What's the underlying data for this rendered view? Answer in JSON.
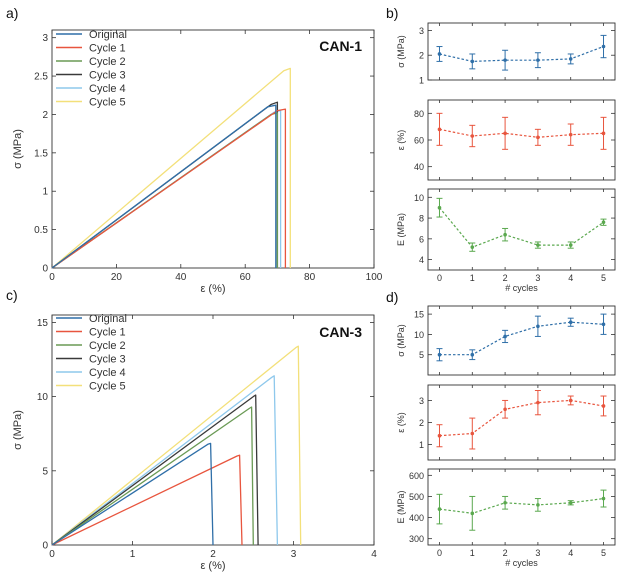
{
  "colors": {
    "Original": "#2f6fa8",
    "Cycle 1": "#e8553e",
    "Cycle 2": "#6a9a55",
    "Cycle 3": "#3a3a3a",
    "Cycle 4": "#8ec8ec",
    "Cycle 5": "#f3e07a",
    "sigma": "#2f6fa8",
    "eps": "#e8553e",
    "E": "#5aa84e"
  },
  "chart_data": [
    {
      "id": "a",
      "type": "line",
      "panel_label": "a)",
      "inset_label": "CAN-1",
      "xlabel": "ε (%)",
      "ylabel": "σ (MPa)",
      "xlim": [
        0,
        100
      ],
      "ylim": [
        0,
        3.1
      ],
      "xticks": [
        0,
        20,
        40,
        60,
        80,
        100
      ],
      "yticks": [
        0,
        0.5,
        1,
        1.5,
        2,
        2.5,
        3
      ],
      "ytick_labels": [
        "0",
        "0.5",
        "1",
        "1.5",
        "2",
        "2.5",
        "3"
      ],
      "legend": "top-left",
      "series": [
        {
          "name": "Original",
          "x": [
            0,
            67,
            69.5,
            69.5
          ],
          "y": [
            0,
            2.1,
            2.12,
            0
          ]
        },
        {
          "name": "Cycle 1",
          "x": [
            0,
            70,
            72.5,
            72.5
          ],
          "y": [
            0,
            2.05,
            2.07,
            0
          ]
        },
        {
          "name": "Cycle 2",
          "x": [
            0,
            68,
            70,
            70
          ],
          "y": [
            0,
            2.0,
            2.02,
            0
          ]
        },
        {
          "name": "Cycle 3",
          "x": [
            0,
            68,
            70,
            70
          ],
          "y": [
            0,
            2.13,
            2.16,
            0
          ]
        },
        {
          "name": "Cycle 4",
          "x": [
            0,
            69,
            71,
            71
          ],
          "y": [
            0,
            2.03,
            2.05,
            0
          ]
        },
        {
          "name": "Cycle 5",
          "x": [
            0,
            72,
            74,
            74
          ],
          "y": [
            0,
            2.57,
            2.6,
            0
          ]
        }
      ]
    },
    {
      "id": "b1",
      "type": "line",
      "panel_label": "b)",
      "ylabel": "σ (MPa)",
      "color_key": "sigma",
      "xlim": [
        -0.35,
        5.35
      ],
      "ylim": [
        1,
        3.3
      ],
      "yticks": [
        1,
        2,
        3
      ],
      "ytick_labels": [
        "1",
        "2",
        "3"
      ],
      "x": [
        0,
        1,
        2,
        3,
        4,
        5
      ],
      "values": [
        2.05,
        1.75,
        1.8,
        1.8,
        1.85,
        2.35
      ],
      "errors": [
        0.3,
        0.3,
        0.4,
        0.3,
        0.2,
        0.45
      ]
    },
    {
      "id": "b2",
      "type": "line",
      "ylabel": "ε (%)",
      "color_key": "eps",
      "xlim": [
        -0.35,
        5.35
      ],
      "ylim": [
        30,
        90
      ],
      "yticks": [
        40,
        60,
        80
      ],
      "ytick_labels": [
        "40",
        "60",
        "80"
      ],
      "x": [
        0,
        1,
        2,
        3,
        4,
        5
      ],
      "values": [
        68,
        63,
        65,
        62,
        64,
        65
      ],
      "errors": [
        12,
        8,
        12,
        6,
        8,
        12
      ]
    },
    {
      "id": "b3",
      "type": "line",
      "ylabel": "E (MPa)",
      "xlabel": "# cycles",
      "color_key": "E",
      "xlim": [
        -0.35,
        5.35
      ],
      "ylim": [
        3,
        10.8
      ],
      "xticks": [
        0,
        1,
        2,
        3,
        4,
        5
      ],
      "yticks": [
        4,
        6,
        8,
        10
      ],
      "ytick_labels": [
        "4",
        "6",
        "8",
        "10"
      ],
      "x": [
        0,
        1,
        2,
        3,
        4,
        5
      ],
      "values": [
        9.0,
        5.2,
        6.4,
        5.4,
        5.4,
        7.6
      ],
      "errors": [
        0.9,
        0.4,
        0.6,
        0.3,
        0.3,
        0.3
      ]
    },
    {
      "id": "c",
      "type": "line",
      "panel_label": "c)",
      "inset_label": "CAN-3",
      "xlabel": "ε (%)",
      "ylabel": "σ (MPa)",
      "xlim": [
        0,
        4
      ],
      "ylim": [
        0,
        15.5
      ],
      "xticks": [
        0,
        1,
        2,
        3,
        4
      ],
      "yticks": [
        0,
        5,
        10,
        15
      ],
      "ytick_labels": [
        "0",
        "5",
        "10",
        "15"
      ],
      "legend": "top-left",
      "series": [
        {
          "name": "Original",
          "x": [
            0,
            1.94,
            1.97,
            2.0
          ],
          "y": [
            0,
            6.8,
            6.85,
            0
          ]
        },
        {
          "name": "Cycle 1",
          "x": [
            0,
            2.3,
            2.33,
            2.36
          ],
          "y": [
            0,
            6.0,
            6.05,
            0
          ]
        },
        {
          "name": "Cycle 2",
          "x": [
            0,
            2.45,
            2.48,
            2.5
          ],
          "y": [
            0,
            9.2,
            9.3,
            0
          ]
        },
        {
          "name": "Cycle 3",
          "x": [
            0,
            2.5,
            2.53,
            2.56
          ],
          "y": [
            0,
            10.0,
            10.1,
            0
          ]
        },
        {
          "name": "Cycle 4",
          "x": [
            0,
            2.73,
            2.76,
            2.8
          ],
          "y": [
            0,
            11.3,
            11.4,
            0
          ]
        },
        {
          "name": "Cycle 5",
          "x": [
            0,
            3.03,
            3.06,
            3.09
          ],
          "y": [
            0,
            13.3,
            13.4,
            0
          ]
        }
      ]
    },
    {
      "id": "d1",
      "type": "line",
      "panel_label": "d)",
      "ylabel": "σ (MPa)",
      "color_key": "sigma",
      "xlim": [
        -0.35,
        5.35
      ],
      "ylim": [
        0,
        17
      ],
      "yticks": [
        5,
        10,
        15
      ],
      "ytick_labels": [
        "5",
        "10",
        "15"
      ],
      "x": [
        0,
        1,
        2,
        3,
        4,
        5
      ],
      "values": [
        5,
        5,
        9.5,
        12,
        13,
        12.5
      ],
      "errors": [
        1.5,
        1.2,
        1.5,
        2.5,
        1.0,
        2.5
      ]
    },
    {
      "id": "d2",
      "type": "line",
      "ylabel": "ε (%)",
      "color_key": "eps",
      "xlim": [
        -0.35,
        5.35
      ],
      "ylim": [
        0.3,
        3.7
      ],
      "yticks": [
        1,
        2,
        3
      ],
      "ytick_labels": [
        "1",
        "2",
        "3"
      ],
      "x": [
        0,
        1,
        2,
        3,
        4,
        5
      ],
      "values": [
        1.4,
        1.5,
        2.6,
        2.9,
        3.0,
        2.75
      ],
      "errors": [
        0.5,
        0.7,
        0.4,
        0.55,
        0.2,
        0.45
      ]
    },
    {
      "id": "d3",
      "type": "line",
      "ylabel": "E (MPa)",
      "xlabel": "# cycles",
      "color_key": "E",
      "xlim": [
        -0.35,
        5.35
      ],
      "ylim": [
        270,
        630
      ],
      "xticks": [
        0,
        1,
        2,
        3,
        4,
        5
      ],
      "yticks": [
        300,
        400,
        500,
        600
      ],
      "ytick_labels": [
        "300",
        "400",
        "500",
        "600"
      ],
      "x": [
        0,
        1,
        2,
        3,
        4,
        5
      ],
      "values": [
        440,
        420,
        470,
        460,
        470,
        490
      ],
      "errors": [
        70,
        80,
        30,
        30,
        10,
        40
      ]
    }
  ]
}
